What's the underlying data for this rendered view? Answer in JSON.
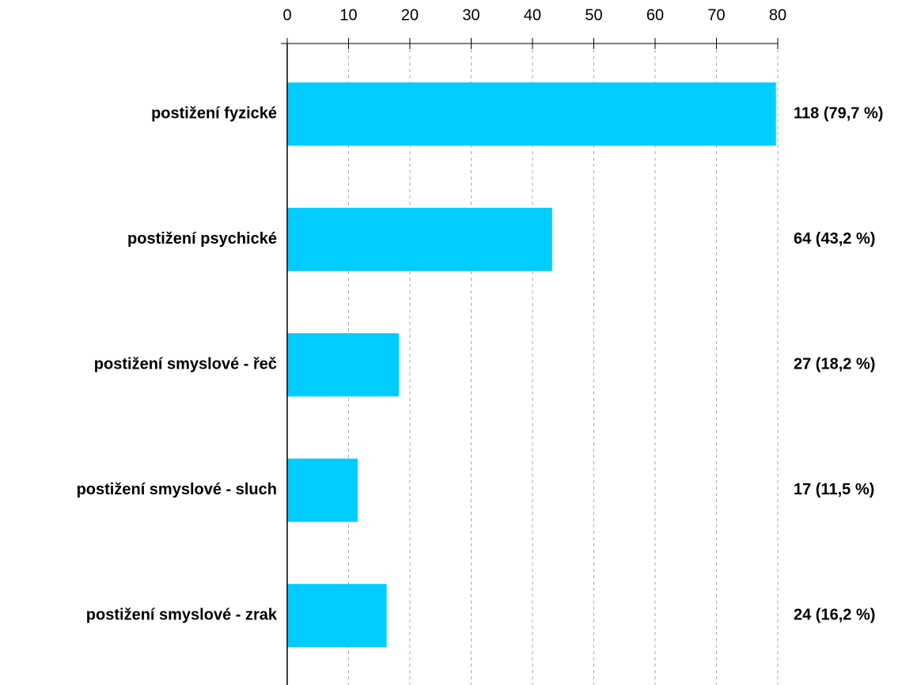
{
  "chart_data": {
    "type": "bar",
    "orientation": "horizontal",
    "categories": [
      "postižení fyzické",
      "postižení psychické",
      "postižení smyslové - řeč",
      "postižení smyslové - sluch",
      "postižení smyslové - zrak"
    ],
    "values": [
      79.7,
      43.2,
      18.2,
      11.5,
      16.2
    ],
    "value_labels": [
      "118 (79,7 %)",
      "64 (43,2 %)",
      "27 (18,2 %)",
      "17 (11,5 %)",
      "24 (16,2 %)"
    ],
    "color": "#00ccff",
    "xlim": [
      0,
      80
    ],
    "xticks": [
      0,
      10,
      20,
      30,
      40,
      50,
      60,
      70,
      80
    ],
    "grid": true
  }
}
